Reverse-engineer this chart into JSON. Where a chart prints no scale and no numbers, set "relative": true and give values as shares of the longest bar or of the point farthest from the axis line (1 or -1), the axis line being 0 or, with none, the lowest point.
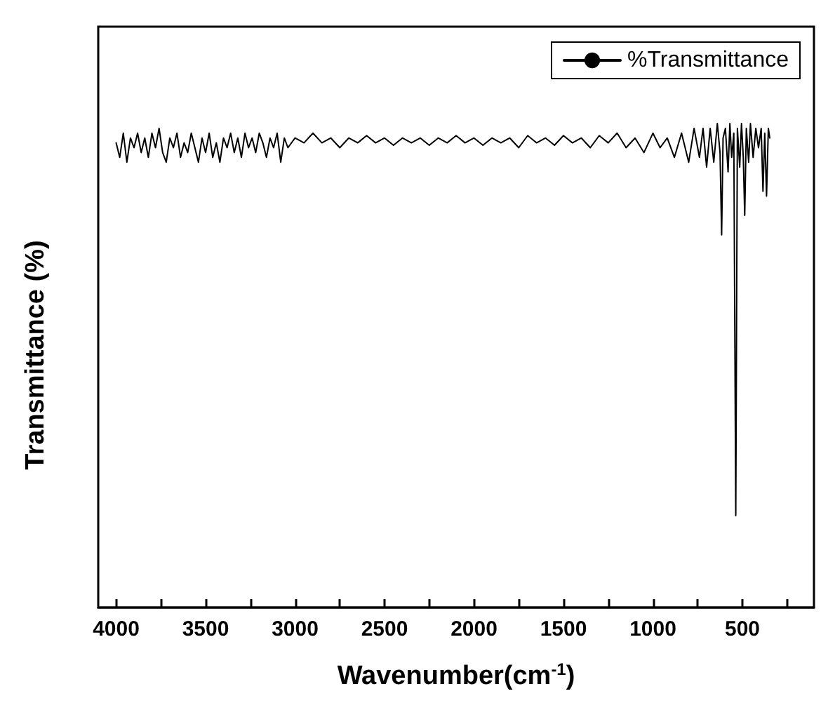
{
  "chart_data": {
    "type": "line",
    "relative": true,
    "xlabel": "Wavenumber(cm$^{-1}$)",
    "ylabel": "Transmittance (%)",
    "xlim": [
      4100,
      100
    ],
    "xticks": [
      4000,
      {
        "value": 3750,
        "label": null
      },
      3500,
      {
        "value": 3250,
        "label": null
      },
      3000,
      {
        "value": 2750,
        "label": null
      },
      2500,
      {
        "value": 2250,
        "label": null
      },
      2000,
      {
        "value": 1750,
        "label": null
      },
      1500,
      {
        "value": 1250,
        "label": null
      },
      1000,
      {
        "value": 750,
        "label": null
      },
      500,
      {
        "value": 250,
        "label": null
      }
    ],
    "x": [
      4000,
      3980,
      3960,
      3940,
      3920,
      3900,
      3880,
      3860,
      3840,
      3820,
      3800,
      3780,
      3760,
      3740,
      3720,
      3700,
      3680,
      3660,
      3640,
      3620,
      3600,
      3580,
      3560,
      3540,
      3520,
      3500,
      3480,
      3460,
      3440,
      3420,
      3400,
      3380,
      3360,
      3340,
      3320,
      3300,
      3280,
      3260,
      3240,
      3220,
      3200,
      3180,
      3160,
      3140,
      3120,
      3100,
      3080,
      3060,
      3040,
      3000,
      2950,
      2900,
      2850,
      2800,
      2750,
      2700,
      2650,
      2600,
      2550,
      2500,
      2450,
      2400,
      2350,
      2300,
      2250,
      2200,
      2150,
      2100,
      2050,
      2000,
      1950,
      1900,
      1850,
      1800,
      1750,
      1700,
      1650,
      1600,
      1550,
      1500,
      1450,
      1400,
      1350,
      1300,
      1250,
      1200,
      1150,
      1100,
      1050,
      1000,
      960,
      920,
      880,
      840,
      800,
      770,
      740,
      720,
      700,
      680,
      660,
      640,
      625,
      616,
      608,
      595,
      580,
      570,
      560,
      548,
      537,
      528,
      515,
      505,
      495,
      487,
      478,
      465,
      455,
      440,
      425,
      410,
      395,
      385,
      375,
      365,
      355,
      347
    ],
    "series": [
      {
        "name": "%Transmittance",
        "color": "#000000",
        "values": [
          0.96,
          0.93,
          0.98,
          0.92,
          0.97,
          0.95,
          0.98,
          0.94,
          0.97,
          0.93,
          0.98,
          0.95,
          0.99,
          0.94,
          0.92,
          0.97,
          0.95,
          0.98,
          0.93,
          0.96,
          0.94,
          0.98,
          0.95,
          0.92,
          0.97,
          0.94,
          0.98,
          0.93,
          0.96,
          0.92,
          0.97,
          0.95,
          0.98,
          0.94,
          0.97,
          0.93,
          0.98,
          0.95,
          0.97,
          0.94,
          0.98,
          0.96,
          0.93,
          0.97,
          0.95,
          0.98,
          0.92,
          0.97,
          0.95,
          0.97,
          0.96,
          0.98,
          0.96,
          0.97,
          0.95,
          0.97,
          0.96,
          0.975,
          0.96,
          0.97,
          0.955,
          0.97,
          0.96,
          0.97,
          0.955,
          0.97,
          0.96,
          0.975,
          0.96,
          0.97,
          0.955,
          0.97,
          0.96,
          0.97,
          0.95,
          0.975,
          0.96,
          0.97,
          0.955,
          0.975,
          0.96,
          0.97,
          0.95,
          0.975,
          0.96,
          0.98,
          0.95,
          0.97,
          0.94,
          0.98,
          0.95,
          0.97,
          0.93,
          0.98,
          0.92,
          0.99,
          0.93,
          0.99,
          0.91,
          0.99,
          0.92,
          1.0,
          0.94,
          0.77,
          0.97,
          0.99,
          0.9,
          1.0,
          0.93,
          0.98,
          0.19,
          0.99,
          0.91,
          1.0,
          0.93,
          0.81,
          0.99,
          0.92,
          1.0,
          0.93,
          0.99,
          0.95,
          0.99,
          0.86,
          0.98,
          0.85,
          0.99,
          0.97
        ]
      }
    ],
    "legend": "top right",
    "line_style": "solid"
  }
}
